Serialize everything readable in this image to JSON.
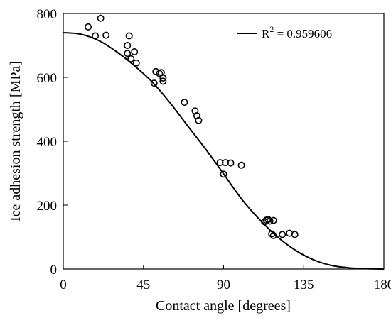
{
  "chart_data": {
    "type": "scatter",
    "xlabel": "Contact angle [degrees]",
    "ylabel": "Ice adhesion strength [MPa]",
    "xlim": [
      0,
      180
    ],
    "ylim": [
      0,
      800
    ],
    "xticks": [
      "0",
      "45",
      "90",
      "135",
      "180"
    ],
    "yticks": [
      "0",
      "200",
      "400",
      "600",
      "800"
    ],
    "grid": false,
    "legend": {
      "placement": "top-right",
      "entries": [
        {
          "label_main": "R",
          "label_sup": "2",
          "label_rest": " = 0.959606"
        }
      ]
    },
    "fit_curve": {
      "description_on_chart": "R² = 0.959606",
      "x": [
        0,
        10,
        20,
        30,
        40,
        50,
        60,
        70,
        80,
        90,
        100,
        110,
        120,
        130,
        140,
        150,
        160,
        170,
        180
      ],
      "y": [
        740,
        735,
        715,
        680,
        636,
        585,
        520,
        447,
        375,
        298,
        220,
        156,
        102,
        60,
        30,
        12,
        4,
        1,
        0
      ]
    },
    "series": [
      {
        "type": "scatter",
        "points": [
          [
            14,
            758
          ],
          [
            18,
            730
          ],
          [
            21,
            785
          ],
          [
            24,
            732
          ],
          [
            36,
            700
          ],
          [
            37,
            730
          ],
          [
            36,
            675
          ],
          [
            38,
            658
          ],
          [
            40,
            680
          ],
          [
            41,
            645
          ],
          [
            51,
            582
          ],
          [
            52,
            618
          ],
          [
            55,
            615
          ],
          [
            56,
            598
          ],
          [
            56,
            588
          ],
          [
            54,
            612
          ],
          [
            68,
            522
          ],
          [
            74,
            495
          ],
          [
            75,
            480
          ],
          [
            76,
            465
          ],
          [
            88,
            333
          ],
          [
            90,
            297
          ],
          [
            91,
            333
          ],
          [
            94,
            332
          ],
          [
            100,
            325
          ],
          [
            113,
            148
          ],
          [
            114,
            153
          ],
          [
            115,
            155
          ],
          [
            116,
            150
          ],
          [
            118,
            152
          ],
          [
            117,
            110
          ],
          [
            118,
            105
          ],
          [
            123,
            108
          ],
          [
            127,
            112
          ],
          [
            130,
            108
          ]
        ]
      }
    ]
  }
}
